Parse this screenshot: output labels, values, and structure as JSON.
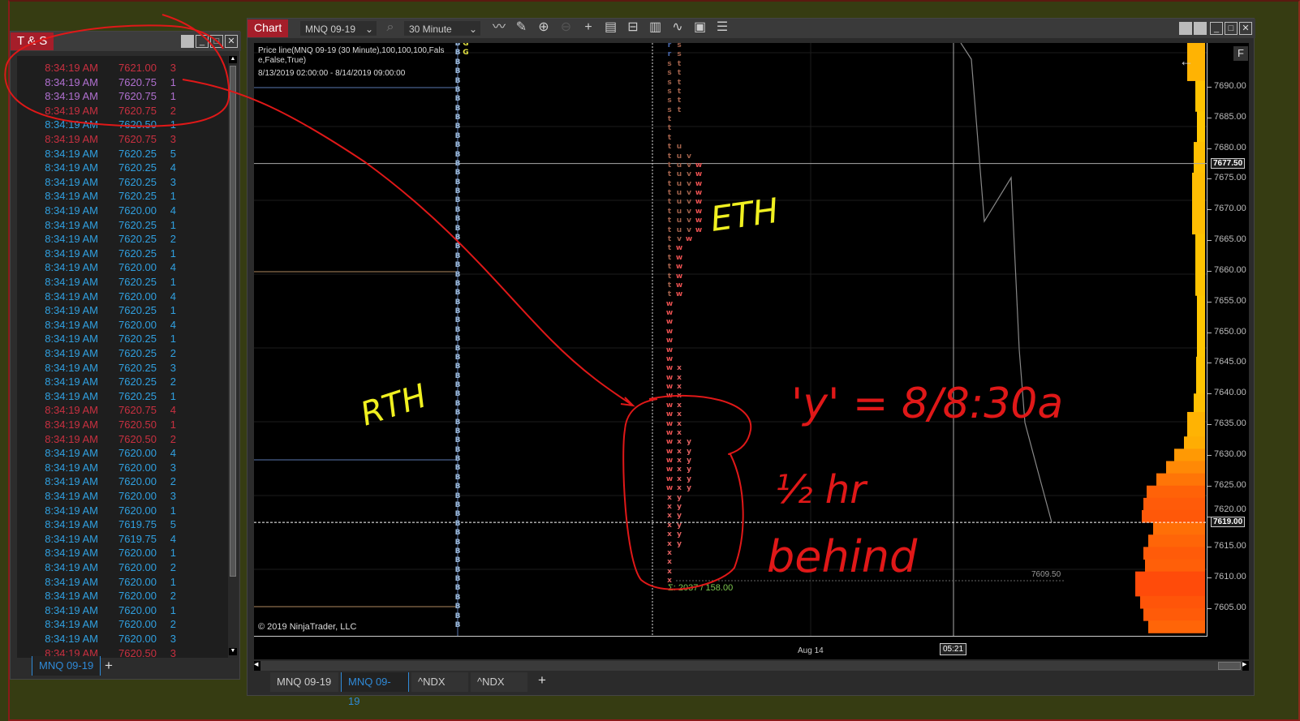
{
  "colors": {
    "ask": "#c83040",
    "above": "#b070d0",
    "bid": "#30a0e0",
    "tab_red": "#a51e2a",
    "active_tab": "#2f8ad8",
    "sigma": "#7ec850",
    "annot_red": "#e01818",
    "annot_yellow": "#f0f020"
  },
  "ts": {
    "title": "T & S",
    "tab": "MNQ 09-19",
    "add_tab": "+",
    "rows": [
      [
        "8:34:19 AM",
        "7621.00",
        "3",
        "ask"
      ],
      [
        "8:34:19 AM",
        "7620.75",
        "1",
        "above"
      ],
      [
        "8:34:19 AM",
        "7620.75",
        "1",
        "above"
      ],
      [
        "8:34:19 AM",
        "7620.75",
        "2",
        "ask"
      ],
      [
        "8:34:19 AM",
        "7620.50",
        "1",
        "bid"
      ],
      [
        "8:34:19 AM",
        "7620.75",
        "3",
        "ask"
      ],
      [
        "8:34:19 AM",
        "7620.25",
        "5",
        "bid"
      ],
      [
        "8:34:19 AM",
        "7620.25",
        "4",
        "bid"
      ],
      [
        "8:34:19 AM",
        "7620.25",
        "3",
        "bid"
      ],
      [
        "8:34:19 AM",
        "7620.25",
        "1",
        "bid"
      ],
      [
        "8:34:19 AM",
        "7620.00",
        "4",
        "bid"
      ],
      [
        "8:34:19 AM",
        "7620.25",
        "1",
        "bid"
      ],
      [
        "8:34:19 AM",
        "7620.25",
        "2",
        "bid"
      ],
      [
        "8:34:19 AM",
        "7620.25",
        "1",
        "bid"
      ],
      [
        "8:34:19 AM",
        "7620.00",
        "4",
        "bid"
      ],
      [
        "8:34:19 AM",
        "7620.25",
        "1",
        "bid"
      ],
      [
        "8:34:19 AM",
        "7620.00",
        "4",
        "bid"
      ],
      [
        "8:34:19 AM",
        "7620.25",
        "1",
        "bid"
      ],
      [
        "8:34:19 AM",
        "7620.00",
        "4",
        "bid"
      ],
      [
        "8:34:19 AM",
        "7620.25",
        "1",
        "bid"
      ],
      [
        "8:34:19 AM",
        "7620.25",
        "2",
        "bid"
      ],
      [
        "8:34:19 AM",
        "7620.25",
        "3",
        "bid"
      ],
      [
        "8:34:19 AM",
        "7620.25",
        "2",
        "bid"
      ],
      [
        "8:34:19 AM",
        "7620.25",
        "1",
        "bid"
      ],
      [
        "8:34:19 AM",
        "7620.75",
        "4",
        "ask"
      ],
      [
        "8:34:19 AM",
        "7620.50",
        "1",
        "ask"
      ],
      [
        "8:34:19 AM",
        "7620.50",
        "2",
        "ask"
      ],
      [
        "8:34:19 AM",
        "7620.00",
        "4",
        "bid"
      ],
      [
        "8:34:19 AM",
        "7620.00",
        "3",
        "bid"
      ],
      [
        "8:34:19 AM",
        "7620.00",
        "2",
        "bid"
      ],
      [
        "8:34:19 AM",
        "7620.00",
        "3",
        "bid"
      ],
      [
        "8:34:19 AM",
        "7620.00",
        "1",
        "bid"
      ],
      [
        "8:34:19 AM",
        "7619.75",
        "5",
        "bid"
      ],
      [
        "8:34:19 AM",
        "7619.75",
        "4",
        "bid"
      ],
      [
        "8:34:19 AM",
        "7620.00",
        "1",
        "bid"
      ],
      [
        "8:34:19 AM",
        "7620.00",
        "2",
        "bid"
      ],
      [
        "8:34:19 AM",
        "7620.00",
        "1",
        "bid"
      ],
      [
        "8:34:19 AM",
        "7620.00",
        "2",
        "bid"
      ],
      [
        "8:34:19 AM",
        "7620.00",
        "1",
        "bid"
      ],
      [
        "8:34:19 AM",
        "7620.00",
        "2",
        "bid"
      ],
      [
        "8:34:19 AM",
        "7620.00",
        "3",
        "bid"
      ],
      [
        "8:34:19 AM",
        "7620.50",
        "3",
        "ask"
      ]
    ]
  },
  "chart": {
    "title": "Chart",
    "instrument": "MNQ 09-19",
    "interval": "30 Minute",
    "toolbar_icons": [
      "line-chart-icon",
      "pencil-icon",
      "zoom-in-icon",
      "zoom-out-icon",
      "crosshair-icon",
      "data-box-icon",
      "bar-spacing-icon",
      "chart-style-icon",
      "indicators-icon",
      "strategies-icon",
      "properties-icon"
    ],
    "indicator_label": "Price line(MNQ 09-19 (30 Minute),100,100,100,False,False,True)",
    "date_range": "8/13/2019 02:00:00 - 8/14/2019 09:00:00",
    "copyright": "© 2019 NinjaTrader, LLC",
    "y_ticks": [
      "7690.00",
      "7685.00",
      "7680.00",
      "7675.00",
      "7670.00",
      "7665.00",
      "7660.00",
      "7655.00",
      "7650.00",
      "7645.00",
      "7640.00",
      "7635.00",
      "7630.00",
      "7625.00",
      "7620.00",
      "7615.00",
      "7610.00",
      "7605.00"
    ],
    "crosshair_price": "7677.50",
    "last_price": "7619.00",
    "level_label": "7609.50",
    "sigma_label": "Σ: 2037 / 158.00",
    "x_label": "Aug 14",
    "crosshair_time": "05:21",
    "f_button": "F",
    "tpo_b_letter": "B",
    "tpo_g_letter": "G",
    "tpo_rows": [
      "r s",
      "r s",
      "s t",
      "s t",
      "s t",
      "s t",
      "s t",
      "s t",
      "t",
      "t",
      "t",
      "t u",
      "t u v",
      "t u v w",
      "t u v w",
      "t u v w",
      "t u v w",
      "t u v w",
      "t u v w",
      "t u v w",
      "t u v w",
      "t v w",
      "t w",
      "t w",
      "t w",
      "t w",
      "t w",
      "t w",
      "w",
      "w",
      "w",
      "w",
      "w",
      "w",
      "w",
      "w x",
      "w x",
      "w x",
      "w x",
      "w x",
      "w x",
      "w x",
      "w x",
      "w x y",
      "w x y",
      "w x y",
      "w x y",
      "w x y",
      "w x y",
      "x y",
      "x y",
      "x y",
      "x y",
      "x y",
      "x y",
      "x",
      "x",
      "x",
      "x"
    ],
    "volume_profile": [
      [
        7698,
        7691,
        22
      ],
      [
        7691,
        7686,
        12
      ],
      [
        7686,
        7681,
        10
      ],
      [
        7681,
        7676,
        14
      ],
      [
        7676,
        7666,
        16
      ],
      [
        7666,
        7656,
        12
      ],
      [
        7656,
        7646,
        10
      ],
      [
        7646,
        7640,
        11
      ],
      [
        7640,
        7637,
        14
      ],
      [
        7637,
        7633,
        22
      ],
      [
        7633,
        7631,
        26
      ],
      [
        7631,
        7629,
        38
      ],
      [
        7629,
        7627,
        48
      ],
      [
        7627,
        7625,
        60
      ],
      [
        7625,
        7623,
        72
      ],
      [
        7623,
        7621,
        76
      ],
      [
        7621,
        7619,
        78
      ],
      [
        7619,
        7617,
        64
      ],
      [
        7617,
        7615,
        70
      ],
      [
        7615,
        7613,
        76
      ],
      [
        7613,
        7611,
        74
      ],
      [
        7611,
        7607,
        86
      ],
      [
        7607,
        7605,
        80
      ],
      [
        7605,
        7603,
        76
      ],
      [
        7603,
        7601,
        70
      ]
    ],
    "tabs": [
      "MNQ 09-19",
      "MNQ 09-19",
      "^NDX",
      "^NDX"
    ],
    "active_tab": 1,
    "add_tab": "+"
  },
  "annotations": {
    "rth": "RTH",
    "eth": "ETH",
    "y_note": "'y' = 8/8:30a",
    "half_hr": "½ hr",
    "behind": "behind"
  }
}
